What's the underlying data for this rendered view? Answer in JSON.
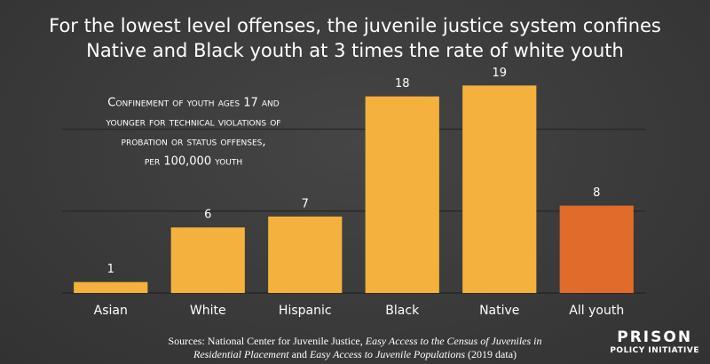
{
  "chart_data": {
    "type": "bar",
    "title": [
      "For the lowest level offenses, the juvenile justice system confines",
      "Native and Black youth at 3 times the rate of white youth"
    ],
    "annotation": [
      "Confinement of youth ages 17 and",
      "younger for technical violations of",
      "probation or status offenses,",
      "per 100,000 youth"
    ],
    "categories": [
      "Asian",
      "White",
      "Hispanic",
      "Black",
      "Native",
      "All youth"
    ],
    "values": [
      1,
      6,
      7,
      18,
      19,
      8
    ],
    "colors": [
      "#f4b13d",
      "#f4b13d",
      "#f4b13d",
      "#f4b13d",
      "#f4b13d",
      "#e06b2a"
    ],
    "ylim": [
      0,
      20
    ],
    "gridlines": [
      7.5,
      15
    ],
    "source": [
      "Sources: National Center for Juvenile Justice,",
      "Easy Access to the Census of Juveniles in",
      "Residential Placement",
      "and",
      "Easy Access to Juvenile Populations",
      "(2019 data)"
    ],
    "logo": [
      "PRISON",
      "POLICY INITIATIVE"
    ]
  }
}
